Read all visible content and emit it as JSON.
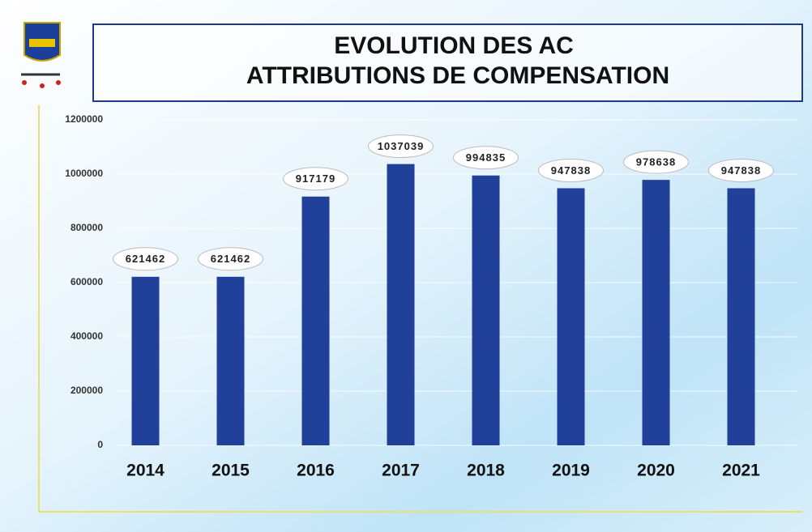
{
  "chart_data": {
    "type": "bar",
    "title": [
      "EVOLUTION DES AC",
      "ATTRIBUTIONS DE COMPENSATION"
    ],
    "categories": [
      "2014",
      "2015",
      "2016",
      "2017",
      "2018",
      "2019",
      "2020",
      "2021"
    ],
    "values": [
      621462,
      621462,
      917179,
      1037039,
      994835,
      947838,
      978638,
      947838
    ],
    "color": "#21409a",
    "ylim": [
      0,
      1200000
    ],
    "yticks": [
      0,
      200000,
      400000,
      600000,
      800000,
      1000000,
      1200000
    ],
    "grid": true
  }
}
